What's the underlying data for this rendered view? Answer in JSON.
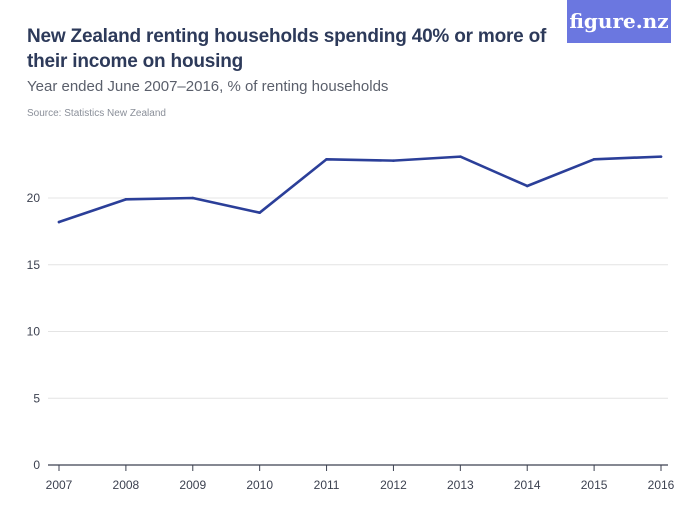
{
  "header": {
    "title": "New Zealand renting households spending 40% or more of their income on housing",
    "subtitle": "Year ended June 2007–2016, % of renting households",
    "source": "Source: Statistics New Zealand",
    "logo": "figure.nz"
  },
  "colors": {
    "line": "#2b3f99",
    "grid": "#e4e4e4",
    "axis": "#3c4150",
    "logo_bg": "#6b77e0"
  },
  "chart_data": {
    "type": "line",
    "x": [
      "2007",
      "2008",
      "2009",
      "2010",
      "2011",
      "2012",
      "2013",
      "2014",
      "2015",
      "2016"
    ],
    "series": [
      {
        "values": [
          18.2,
          19.9,
          20.0,
          18.9,
          22.9,
          22.8,
          23.1,
          20.9,
          22.9,
          23.1
        ]
      }
    ],
    "yticks": [
      0,
      5,
      10,
      15,
      20
    ],
    "ylim": [
      0,
      23.5
    ],
    "grid": true,
    "legend": "none"
  }
}
